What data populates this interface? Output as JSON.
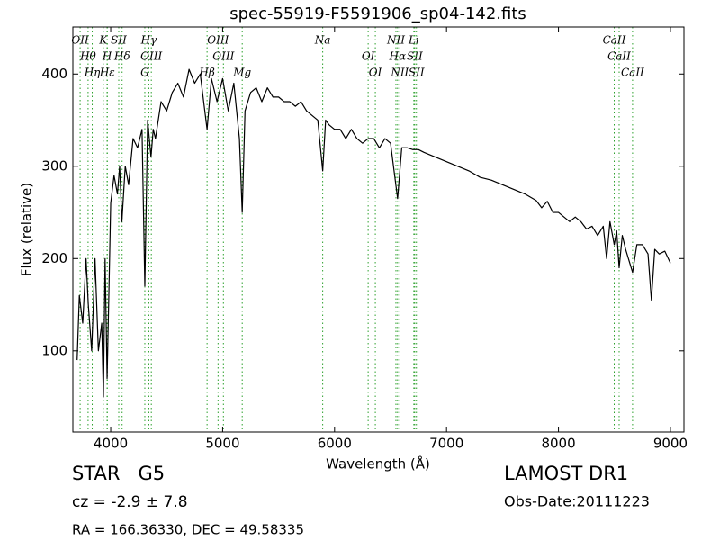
{
  "chart_data": {
    "type": "line",
    "title": "spec-55919-F5591906_sp04-142.fits",
    "xlabel": "Wavelength (Å)",
    "ylabel": "Flux (relative)",
    "xlim": [
      3662,
      9121
    ],
    "ylim": [
      12,
      451
    ],
    "xticks": [
      4000,
      5000,
      6000,
      7000,
      8000,
      9000
    ],
    "yticks": [
      100,
      200,
      300,
      400
    ],
    "grid": false,
    "series": [
      {
        "color": "#000000",
        "x": [
          3700,
          3720,
          3750,
          3780,
          3800,
          3830,
          3860,
          3890,
          3920,
          3935,
          3950,
          3968,
          3990,
          4000,
          4030,
          4060,
          4080,
          4100,
          4130,
          4160,
          4200,
          4240,
          4280,
          4305,
          4330,
          4360,
          4380,
          4400,
          4450,
          4500,
          4550,
          4600,
          4650,
          4700,
          4750,
          4800,
          4861,
          4900,
          4950,
          5000,
          5050,
          5100,
          5150,
          5175,
          5200,
          5250,
          5300,
          5350,
          5400,
          5450,
          5500,
          5550,
          5600,
          5650,
          5700,
          5750,
          5800,
          5850,
          5894,
          5920,
          5950,
          6000,
          6050,
          6100,
          6150,
          6200,
          6250,
          6300,
          6350,
          6400,
          6450,
          6500,
          6563,
          6600,
          6650,
          6700,
          6750,
          6800,
          6900,
          7000,
          7100,
          7200,
          7300,
          7400,
          7500,
          7600,
          7700,
          7800,
          7850,
          7900,
          7950,
          8000,
          8050,
          8100,
          8150,
          8200,
          8250,
          8300,
          8350,
          8400,
          8430,
          8460,
          8498,
          8520,
          8542,
          8570,
          8600,
          8662,
          8700,
          8750,
          8800,
          8830,
          8860,
          8900,
          8950,
          9000
        ],
        "values": [
          90,
          160,
          130,
          200,
          150,
          100,
          200,
          100,
          130,
          50,
          200,
          70,
          200,
          260,
          290,
          270,
          300,
          240,
          300,
          280,
          330,
          320,
          340,
          170,
          350,
          310,
          340,
          330,
          370,
          360,
          380,
          390,
          375,
          405,
          390,
          400,
          340,
          395,
          370,
          395,
          360,
          390,
          330,
          250,
          360,
          380,
          385,
          370,
          385,
          375,
          375,
          370,
          370,
          365,
          370,
          360,
          355,
          350,
          295,
          350,
          345,
          340,
          340,
          330,
          340,
          330,
          325,
          330,
          330,
          320,
          330,
          325,
          265,
          320,
          320,
          318,
          318,
          315,
          310,
          305,
          300,
          295,
          288,
          285,
          280,
          275,
          270,
          263,
          255,
          262,
          250,
          250,
          245,
          240,
          245,
          240,
          232,
          235,
          225,
          235,
          200,
          240,
          215,
          230,
          190,
          225,
          210,
          185,
          215,
          215,
          205,
          155,
          210,
          205,
          208,
          195
        ]
      }
    ],
    "lines_color": "#2ca02c",
    "lines": [
      {
        "x": 3727,
        "label": "OII"
      },
      {
        "x": 3798,
        "label": "Hθ"
      },
      {
        "x": 3835,
        "label": "Hη"
      },
      {
        "x": 3934,
        "label": "K"
      },
      {
        "x": 3968,
        "label": "H"
      },
      {
        "x": 3970,
        "label": "Hε"
      },
      {
        "x": 4072,
        "label": "SII"
      },
      {
        "x": 4102,
        "label": "Hδ"
      },
      {
        "x": 4305,
        "label": "G"
      },
      {
        "x": 4341,
        "label": "Hγ"
      },
      {
        "x": 4363,
        "label": "OIII"
      },
      {
        "x": 4861,
        "label": "Hβ"
      },
      {
        "x": 4959,
        "label": "OIII"
      },
      {
        "x": 5007,
        "label": "OIII"
      },
      {
        "x": 5175,
        "label": "Mg"
      },
      {
        "x": 5894,
        "label": "Na"
      },
      {
        "x": 6300,
        "label": "OI"
      },
      {
        "x": 6364,
        "label": "OI"
      },
      {
        "x": 6548,
        "label": "NII"
      },
      {
        "x": 6563,
        "label": "Hα"
      },
      {
        "x": 6583,
        "label": "NII"
      },
      {
        "x": 6708,
        "label": "Li"
      },
      {
        "x": 6716,
        "label": "SII"
      },
      {
        "x": 6731,
        "label": "SII"
      },
      {
        "x": 8498,
        "label": "CaII"
      },
      {
        "x": 8542,
        "label": "CaII"
      },
      {
        "x": 8662,
        "label": "CaII"
      }
    ]
  },
  "footer": {
    "object": "STAR   G5",
    "survey": "LAMOST DR1",
    "cz": "cz = -2.9 ± 7.8",
    "obs_date": "Obs-Date:20111223",
    "coords": "RA = 166.36330, DEC = 49.58335"
  }
}
